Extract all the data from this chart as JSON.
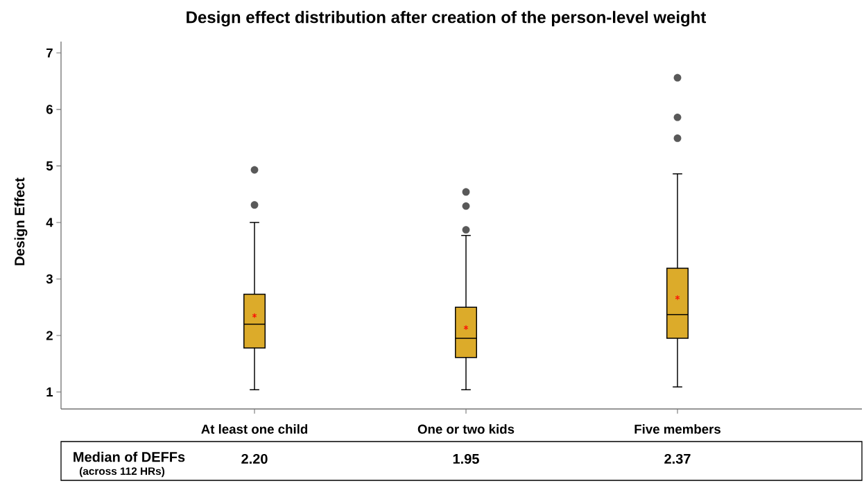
{
  "chart_data": {
    "type": "box",
    "title": "Design effect distribution after creation of the person-level weight",
    "ylabel": "Design Effect",
    "categories": [
      "At least one child",
      "One or two kids",
      "Five members"
    ],
    "series": [
      {
        "color": "#dcab2a",
        "boxes": [
          {
            "low": 1.04,
            "q1": 1.78,
            "median": 2.2,
            "q3": 2.73,
            "high": 4.0,
            "mean": 2.35,
            "outliers": [
              4.93,
              4.31
            ]
          },
          {
            "low": 1.04,
            "q1": 1.61,
            "median": 1.95,
            "q3": 2.5,
            "high": 3.77,
            "mean": 2.14,
            "outliers": [
              4.54,
              4.29,
              3.87
            ]
          },
          {
            "low": 1.09,
            "q1": 1.95,
            "median": 2.37,
            "q3": 3.19,
            "high": 4.86,
            "mean": 2.67,
            "outliers": [
              6.56,
              5.86,
              5.49
            ]
          }
        ]
      }
    ],
    "ylim": [
      0.7,
      7.2
    ],
    "yticks": [
      1,
      2,
      3,
      4,
      5,
      6,
      7
    ],
    "annotations": [
      "Median of DEFFs",
      "(across 112 HRs)",
      "2.20",
      "1.95",
      "2.37"
    ]
  }
}
